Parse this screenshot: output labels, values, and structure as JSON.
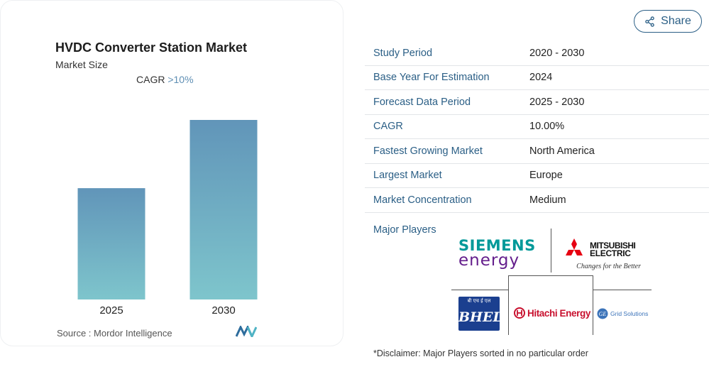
{
  "chart_data": {
    "type": "bar",
    "title": "HVDC Converter Station Market",
    "subtitle": "Market Size",
    "categories": [
      "2025",
      "2030"
    ],
    "values": [
      62,
      100
    ],
    "ylim": [
      0,
      100
    ],
    "cagr_label": "CAGR",
    "cagr_value": ">10%",
    "gradient_top": "#6195b9",
    "gradient_bottom": "#7ec5cc"
  },
  "source": {
    "label": "Source :",
    "value": "Mordor Intelligence"
  },
  "share": {
    "label": "Share"
  },
  "info_rows": [
    {
      "key": "Study Period",
      "value": "2020 - 2030"
    },
    {
      "key": "Base Year For Estimation",
      "value": "2024"
    },
    {
      "key": "Forecast Data Period",
      "value": "2025 - 2030"
    },
    {
      "key": "CAGR",
      "value": "10.00%"
    },
    {
      "key": "Fastest Growing Market",
      "value": "North America"
    },
    {
      "key": "Largest Market",
      "value": "Europe"
    },
    {
      "key": "Market Concentration",
      "value": "Medium"
    }
  ],
  "major_players": {
    "label": "Major Players",
    "logos": {
      "siemens": {
        "line1": "SIEMENS",
        "line2": "energy"
      },
      "mitsubishi": {
        "line1": "MITSUBISHI",
        "line2": "ELECTRIC",
        "tagline": "Changes for the Better"
      },
      "bhel": {
        "text": "BHEL",
        "hindi": "बी एच ई एल"
      },
      "hitachi": {
        "text": "Hitachi Energy"
      },
      "ge": {
        "text": "Grid Solutions",
        "mark": "GE"
      }
    }
  },
  "disclaimer": "*Disclaimer: Major Players sorted in no particular order",
  "colors": {
    "accent": "#2b5f86",
    "siemens": "#009999",
    "siemens_energy": "#641e8c",
    "mitsubishi": "#e60012",
    "hitachi": "#c8102e",
    "bhel": "#1b3f8f",
    "ge": "#3b73b9"
  }
}
